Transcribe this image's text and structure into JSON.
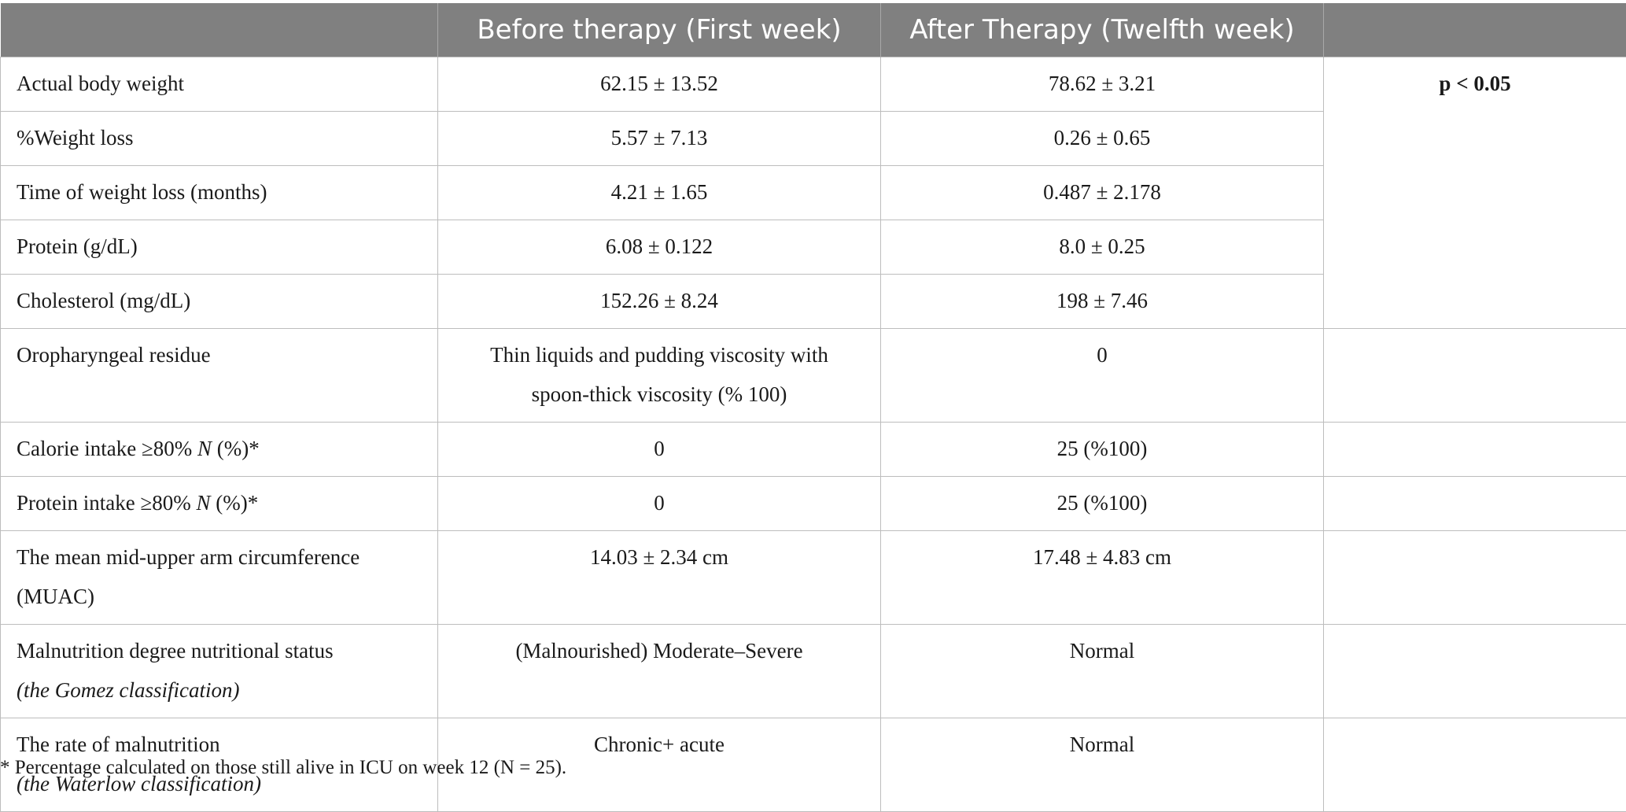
{
  "header": {
    "col0": "",
    "col1": "Before therapy (First week)",
    "col2": "After Therapy (Twelfth week)",
    "col3": ""
  },
  "rows": [
    {
      "label": "Actual body weight",
      "before": "62.15 ± 13.52",
      "after": "78.62 ± 3.21"
    },
    {
      "label": "%Weight loss",
      "before": "5.57 ± 7.13",
      "after": "0.26 ± 0.65"
    },
    {
      "label": "Time of weight loss (months)",
      "before": "4.21 ± 1.65",
      "after": "0.487 ± 2.178"
    },
    {
      "label": "Protein (g/dL)",
      "before": "6.08 ± 0.122",
      "after": "8.0 ± 0.25"
    },
    {
      "label": "Cholesterol (mg/dL)",
      "before": "152.26 ± 8.24",
      "after": "198 ± 7.46"
    },
    {
      "label": "Oropharyngeal residue",
      "before_line1": "Thin liquids and pudding viscosity with",
      "before_line2": "spoon-thick viscosity (% 100)",
      "after": "0"
    },
    {
      "label_pre": "Calorie intake ≥80% ",
      "label_n": "N",
      "label_post": " (%)*",
      "before": "0",
      "after": "25 (%100)"
    },
    {
      "label_pre": "Protein intake ≥80% ",
      "label_n": "N",
      "label_post": " (%)*",
      "before": "0",
      "after": "25 (%100)"
    },
    {
      "label_line1": "The mean mid-upper arm circumference",
      "label_line2": "(MUAC)",
      "before": "14.03 ± 2.34 cm",
      "after": "17.48 ± 4.83 cm"
    },
    {
      "label_line1": "Malnutrition degree nutritional status",
      "label_line2": "(the Gomez classification)",
      "before": "(Malnourished) Moderate–Severe",
      "after": "Normal"
    },
    {
      "label_line1": "The rate of malnutrition",
      "label_line2": "(the Waterlow classification)",
      "before": "Chronic+ acute",
      "after": "Normal"
    }
  ],
  "significance": "p < 0.05",
  "footnote": "* Percentage calculated on those still alive in ICU on week 12 (N = 25)."
}
